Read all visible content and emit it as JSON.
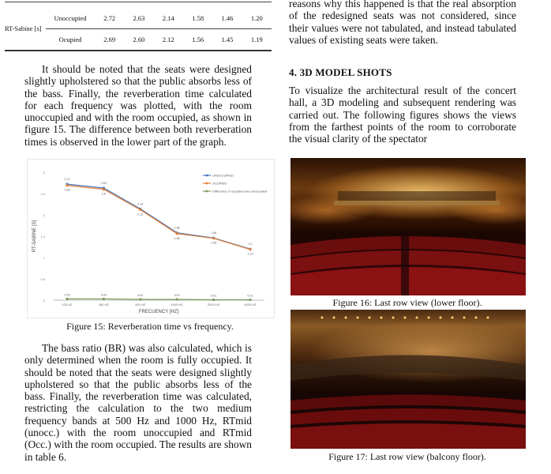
{
  "table": {
    "label": "RT-Sabine [s]",
    "rows": [
      {
        "condition": "Unoccupied",
        "values": [
          "2.72",
          "2.63",
          "2.14",
          "1.58",
          "1.46",
          "1.20"
        ]
      },
      {
        "condition": "Ocupied",
        "values": [
          "2.69",
          "2.60",
          "2.12",
          "1.56",
          "1.45",
          "1.19"
        ]
      }
    ]
  },
  "left_para1": "It should be noted that the seats were designed slightly upholstered so that the public absorbs less of the bass. Finally, the reverberation time calculated for each frequency was plotted, with the room unoccupied and with the room occupied, as shown in figure 15. The difference between both reverberation times is observed in the lower part of the graph.",
  "figure15_caption": "Figure 15: Reverberation time vs frequency.",
  "left_para2": "The bass ratio (BR) was also calculated, which is only determined when the room is fully occupied. It should be noted that the seats were designed slightly upholstered so that the public absorbs less of the bass. Finally, the reverberation time was calculated, restricting the calculation to the two medium frequency bands at 500 Hz and 1000 Hz, RTmid (unocc.) with the room unoccupied and RTmid (Occ.) with the room occupied. The results are shown in table 6.",
  "right_para1": "reasons why this happened is that the real absorption of the redesigned seats was not considered, since their values were not tabulated, and instead tabulated values of existing seats were taken.",
  "section_heading": "4. 3D MODEL SHOTS",
  "right_para2": "To visualize the architectural result of the concert hall, a 3D modeling and subsequent rendering was carried out. The following figures shows the views from the farthest points of the room to corroborate the visual clarity of the spectator",
  "figure16_caption": "Figure 16: Last row view (lower floor).",
  "figure17_caption": "Figure 17: Last row view (balcony floor).",
  "chart_data": {
    "type": "line",
    "title": "",
    "xlabel": "FRECUENCY [HZ]",
    "ylabel": "RT-SABINE [S]",
    "categories": [
      "125 HZ",
      "250 HZ",
      "500 HZ",
      "1000 HZ",
      "2000 HZ",
      "4000 HZ"
    ],
    "ylim": [
      0,
      3
    ],
    "y_ticks": [
      "0",
      "0.5",
      "1",
      "1.5",
      "2",
      "2.5",
      "3"
    ],
    "series": [
      {
        "name": "UNOCCUPIED",
        "color": "#4a74b8",
        "values": [
          2.72,
          2.63,
          2.14,
          1.58,
          1.46,
          1.2
        ],
        "labels": [
          "2.72",
          "2.63",
          "2.14",
          "1.58",
          "1.46",
          "1.2"
        ]
      },
      {
        "name": "OCUPIED",
        "color": "#e2803a",
        "values": [
          2.69,
          2.6,
          2.12,
          1.56,
          1.45,
          1.19
        ],
        "labels": [
          "2.69",
          "2.6",
          "2.12",
          "1.56",
          "1.45",
          "1.19"
        ]
      },
      {
        "name": "Difference of occupied and unoccupied",
        "color": "#7a9a5a",
        "values": [
          0.03,
          0.03,
          0.02,
          0.02,
          0.01,
          0.01
        ],
        "labels": [
          "0.03",
          "0.03",
          "0.02",
          "0.02",
          "0.01",
          "0.01"
        ]
      }
    ]
  }
}
